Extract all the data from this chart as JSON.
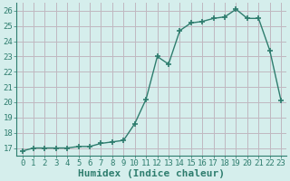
{
  "x": [
    0,
    1,
    2,
    3,
    4,
    5,
    6,
    7,
    8,
    9,
    10,
    11,
    12,
    13,
    14,
    15,
    16,
    17,
    18,
    19,
    20,
    21,
    22,
    23
  ],
  "y": [
    16.8,
    17.0,
    17.0,
    17.0,
    17.0,
    17.1,
    17.1,
    17.3,
    17.4,
    17.5,
    18.6,
    20.2,
    23.0,
    22.5,
    24.7,
    25.2,
    25.3,
    25.5,
    25.6,
    26.1,
    25.5,
    25.5,
    23.4,
    20.1
  ],
  "line_color": "#2e7d6e",
  "marker": "+",
  "marker_size": 4,
  "marker_lw": 1.2,
  "xlabel": "Humidex (Indice chaleur)",
  "xlim": [
    -0.5,
    23.5
  ],
  "ylim": [
    16.5,
    26.5
  ],
  "yticks": [
    17,
    18,
    19,
    20,
    21,
    22,
    23,
    24,
    25,
    26
  ],
  "xticks": [
    0,
    1,
    2,
    3,
    4,
    5,
    6,
    7,
    8,
    9,
    10,
    11,
    12,
    13,
    14,
    15,
    16,
    17,
    18,
    19,
    20,
    21,
    22,
    23
  ],
  "bg_color": "#d5eeec",
  "grid_color": "#c0b8c0",
  "tick_color": "#2e7d6e",
  "tick_fontsize": 6.5,
  "xlabel_fontsize": 8,
  "line_width": 1.0
}
